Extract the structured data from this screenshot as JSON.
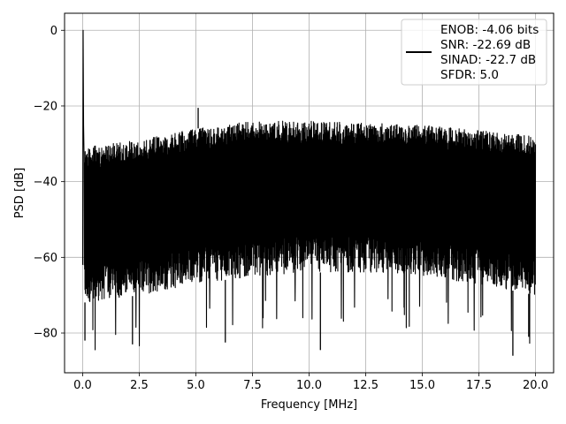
{
  "chart_data": {
    "type": "line",
    "title": "",
    "xlabel": "Frequency [MHz]",
    "ylabel": "PSD [dB]",
    "xlim": [
      -0.8,
      20.8
    ],
    "ylim": [
      -90.5,
      4.5
    ],
    "xticks": [
      0.0,
      2.5,
      5.0,
      7.5,
      10.0,
      12.5,
      15.0,
      17.5,
      20.0
    ],
    "xtick_labels": [
      "0.0",
      "2.5",
      "5.0",
      "7.5",
      "10.0",
      "12.5",
      "15.0",
      "17.5",
      "20.0"
    ],
    "yticks": [
      0,
      -20,
      -40,
      -60,
      -80
    ],
    "ytick_labels": [
      "0",
      "−20",
      "−40",
      "−60",
      "−80"
    ],
    "grid": true,
    "legend_position": "top-right",
    "series": [
      {
        "name": "ENOB: -4.06 bits\nSNR: -22.69 dB\nSINAD: -22.7 dB\nSFDR: 5.0",
        "color": "#000000",
        "x_range": [
          0.0,
          20.0
        ],
        "fundamental": {
          "x": 0.02,
          "y": 0.0
        },
        "upper_envelope": [
          [
            0.0,
            -31
          ],
          [
            2.5,
            -29
          ],
          [
            5.0,
            -26
          ],
          [
            7.5,
            -24
          ],
          [
            10.0,
            -24
          ],
          [
            12.5,
            -24.5
          ],
          [
            15.0,
            -25
          ],
          [
            17.5,
            -26.5
          ],
          [
            20.0,
            -28
          ]
        ],
        "lower_envelope": [
          [
            0.0,
            -72
          ],
          [
            2.5,
            -70
          ],
          [
            5.0,
            -67
          ],
          [
            7.5,
            -65
          ],
          [
            10.0,
            -64
          ],
          [
            12.5,
            -64
          ],
          [
            15.0,
            -65
          ],
          [
            17.5,
            -67
          ],
          [
            20.0,
            -70
          ]
        ],
        "notable_points": [
          [
            0.1,
            -82
          ],
          [
            2.2,
            -83
          ],
          [
            5.1,
            -20.5
          ],
          [
            6.3,
            -82.5
          ],
          [
            10.5,
            -84.5
          ],
          [
            19.0,
            -86
          ],
          [
            19.7,
            -81
          ]
        ]
      }
    ]
  },
  "legend": {
    "lines": [
      "ENOB: -4.06 bits",
      "SNR: -22.69 dB",
      "SINAD: -22.7 dB",
      "SFDR: 5.0"
    ]
  }
}
